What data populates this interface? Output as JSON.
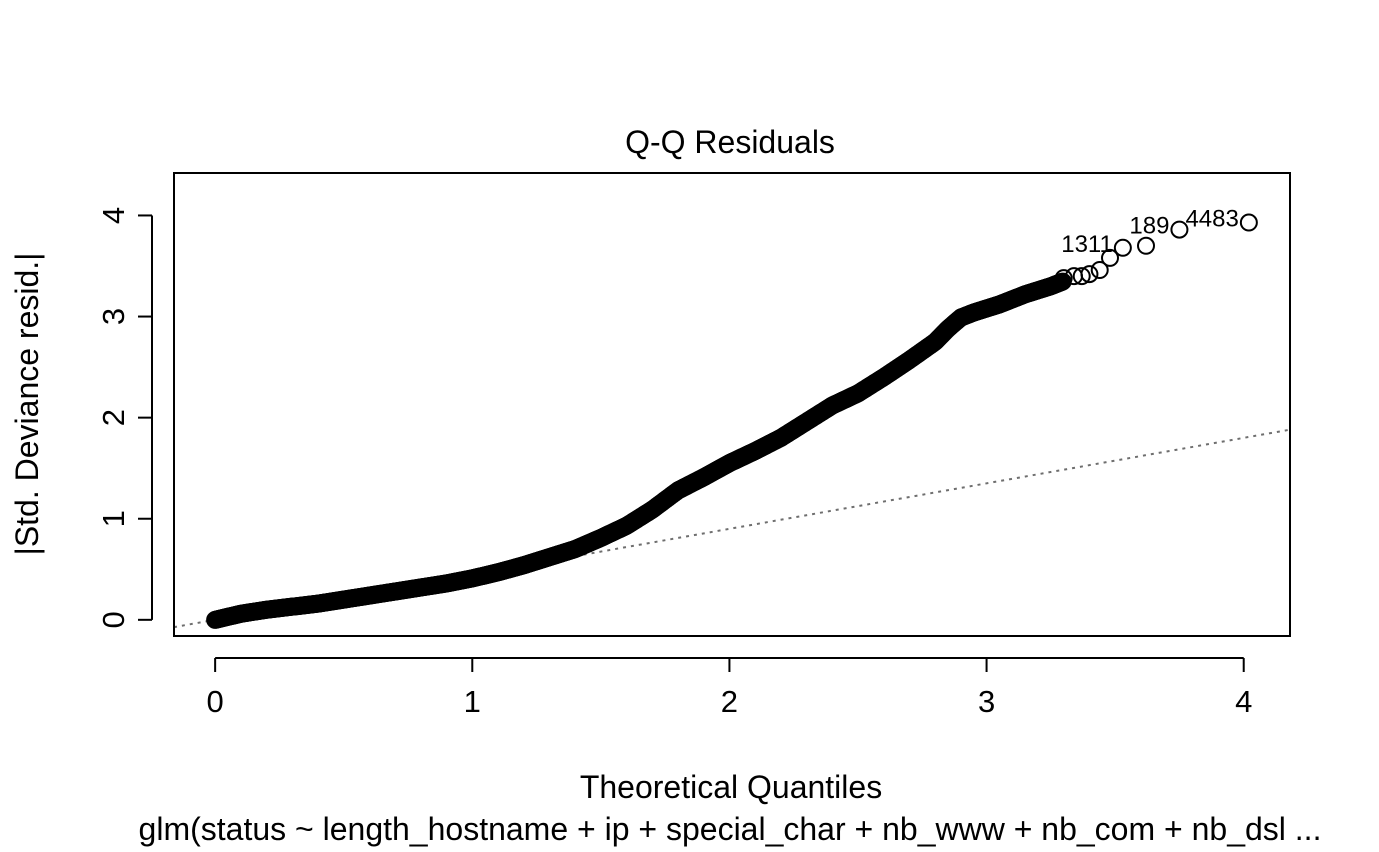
{
  "chart_data": {
    "type": "scatter",
    "title": "Q-Q Residuals",
    "xlabel": "Theoretical Quantiles",
    "ylabel": "|Std. Deviance resid.|",
    "subtitle": "glm(status ~ length_hostname + ip + special_char + nb_www + nb_com + nb_dsl ...",
    "xlim": [
      -0.16,
      4.18
    ],
    "ylim": [
      -0.16,
      4.42
    ],
    "x_ticks": [
      0,
      1,
      2,
      3,
      4
    ],
    "y_ticks": [
      0,
      1,
      2,
      3,
      4
    ],
    "grid": false,
    "reference_line": {
      "style": "dotted",
      "intercept": 0.0,
      "slope": 0.45,
      "color": "#6e6e6e"
    },
    "curve": {
      "x": [
        0,
        0.05,
        0.1,
        0.2,
        0.3,
        0.4,
        0.5,
        0.6,
        0.7,
        0.8,
        0.9,
        1.0,
        1.1,
        1.2,
        1.3,
        1.4,
        1.5,
        1.6,
        1.7,
        1.8,
        1.9,
        2.0,
        2.1,
        2.2,
        2.3,
        2.4,
        2.5,
        2.6,
        2.7,
        2.8,
        2.85,
        2.9,
        2.95,
        3.0,
        3.05,
        3.1,
        3.15,
        3.2,
        3.25,
        3.3
      ],
      "y": [
        0.0,
        0.03,
        0.06,
        0.1,
        0.13,
        0.16,
        0.2,
        0.24,
        0.28,
        0.32,
        0.36,
        0.41,
        0.47,
        0.54,
        0.62,
        0.7,
        0.81,
        0.93,
        1.09,
        1.28,
        1.41,
        1.55,
        1.67,
        1.8,
        1.96,
        2.12,
        2.24,
        2.4,
        2.57,
        2.75,
        2.88,
        2.99,
        3.04,
        3.08,
        3.12,
        3.17,
        3.22,
        3.26,
        3.3,
        3.35
      ]
    },
    "tail_points": {
      "x": [
        3.3,
        3.34,
        3.37,
        3.4,
        3.44,
        3.48,
        3.53,
        3.62,
        3.75,
        4.02
      ],
      "y": [
        3.38,
        3.4,
        3.4,
        3.42,
        3.46,
        3.58,
        3.68,
        3.7,
        3.86,
        3.93
      ]
    },
    "labeled_points": [
      {
        "label": "1311",
        "x": 3.53,
        "y": 3.68
      },
      {
        "label": "189",
        "x": 3.75,
        "y": 3.86
      },
      {
        "label": "4483",
        "x": 4.02,
        "y": 3.93
      }
    ]
  }
}
